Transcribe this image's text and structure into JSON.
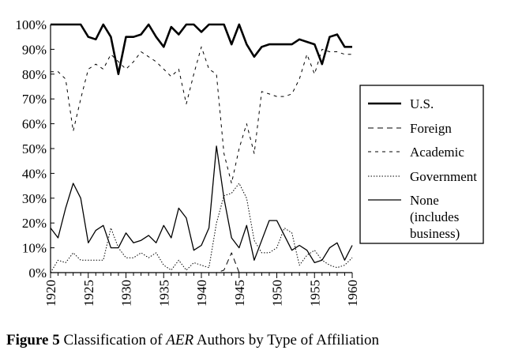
{
  "chart_data": {
    "type": "line",
    "title": "",
    "xlabel": "",
    "ylabel": "",
    "xlim": [
      1920,
      1960
    ],
    "ylim": [
      0,
      100
    ],
    "y_ticks": [
      0,
      10,
      20,
      30,
      40,
      50,
      60,
      70,
      80,
      90,
      100
    ],
    "y_tick_labels": [
      "0%",
      "10%",
      "20%",
      "30%",
      "40%",
      "50%",
      "60%",
      "70%",
      "80%",
      "90%",
      "100%"
    ],
    "x_ticks": [
      1920,
      1925,
      1930,
      1935,
      1940,
      1945,
      1950,
      1955,
      1960
    ],
    "x_tick_labels": [
      "1920",
      "1925",
      "1930",
      "1935",
      "1940",
      "1945",
      "1950",
      "1955",
      "1960"
    ],
    "grid": false,
    "legend_position": "right",
    "legend": [
      {
        "label": "U.S.",
        "style": "thick"
      },
      {
        "label": "Foreign",
        "style": "dashed"
      },
      {
        "label": "Academic",
        "style": "dashed"
      },
      {
        "label": "Government",
        "style": "dotted"
      },
      {
        "label": "None (includes business)",
        "style": "solid"
      }
    ],
    "series": [
      {
        "name": "U.S.",
        "x": [
          1920,
          1921,
          1922,
          1923,
          1924,
          1925,
          1926,
          1927,
          1928,
          1929,
          1930,
          1931,
          1932,
          1933,
          1934,
          1935,
          1936,
          1937,
          1938,
          1939,
          1940,
          1941,
          1942,
          1943,
          1944,
          1945,
          1946,
          1947,
          1948,
          1949,
          1950,
          1951,
          1952,
          1953,
          1954,
          1955,
          1956,
          1957,
          1958,
          1959,
          1960
        ],
        "y": [
          100,
          100,
          100,
          100,
          100,
          95,
          94,
          100,
          95,
          80,
          95,
          95,
          96,
          100,
          95,
          91,
          99,
          96,
          100,
          100,
          97,
          100,
          100,
          100,
          92,
          100,
          92,
          87,
          91,
          92,
          92,
          92,
          92,
          94,
          93,
          92,
          84,
          95,
          96,
          91,
          91
        ]
      },
      {
        "name": "Foreign",
        "x": [
          1920,
          1921,
          1922,
          1923,
          1924,
          1925,
          1926,
          1927,
          1928,
          1929,
          1930,
          1931,
          1932,
          1933,
          1934,
          1935,
          1936,
          1937,
          1938,
          1939,
          1940,
          1941,
          1942,
          1943,
          1944,
          1945,
          1946,
          1947,
          1948,
          1949,
          1950,
          1951,
          1952,
          1953,
          1954,
          1955,
          1956,
          1957,
          1958,
          1959,
          1960
        ],
        "y": [
          0,
          0,
          0,
          0,
          0,
          0,
          0,
          0,
          0,
          0,
          0,
          0,
          0,
          0,
          0,
          0,
          0,
          0,
          0,
          0,
          0,
          0,
          0,
          1,
          8,
          0,
          0,
          0,
          0,
          0,
          0,
          0,
          0,
          0,
          0,
          0,
          0,
          0,
          0,
          0,
          0
        ]
      },
      {
        "name": "Academic",
        "x": [
          1920,
          1921,
          1922,
          1923,
          1924,
          1925,
          1926,
          1927,
          1928,
          1929,
          1930,
          1931,
          1932,
          1933,
          1934,
          1935,
          1936,
          1937,
          1938,
          1939,
          1940,
          1941,
          1942,
          1943,
          1944,
          1945,
          1946,
          1947,
          1948,
          1949,
          1950,
          1951,
          1952,
          1953,
          1954,
          1955,
          1956,
          1957,
          1958,
          1959,
          1960
        ],
        "y": [
          81,
          81,
          78,
          57,
          70,
          82,
          84,
          82,
          88,
          85,
          82,
          85,
          89,
          87,
          85,
          82,
          79,
          82,
          68,
          80,
          91,
          82,
          80,
          48,
          36,
          50,
          60,
          48,
          73,
          72,
          71,
          71,
          72,
          78,
          88,
          80,
          90,
          89,
          89,
          88,
          88
        ]
      },
      {
        "name": "Government",
        "x": [
          1920,
          1921,
          1922,
          1923,
          1924,
          1925,
          1926,
          1927,
          1928,
          1929,
          1930,
          1931,
          1932,
          1933,
          1934,
          1935,
          1936,
          1937,
          1938,
          1939,
          1940,
          1941,
          1942,
          1943,
          1944,
          1945,
          1946,
          1947,
          1948,
          1949,
          1950,
          1951,
          1952,
          1953,
          1954,
          1955,
          1956,
          1957,
          1958,
          1959,
          1960
        ],
        "y": [
          0,
          5,
          4,
          8,
          5,
          5,
          5,
          5,
          18,
          10,
          6,
          6,
          8,
          6,
          8,
          3,
          1,
          5,
          1,
          4,
          3,
          2,
          20,
          31,
          32,
          36,
          30,
          13,
          8,
          8,
          10,
          18,
          16,
          3,
          7,
          9,
          5,
          3,
          2,
          3,
          6
        ]
      },
      {
        "name": "None (includes business)",
        "x": [
          1920,
          1921,
          1922,
          1923,
          1924,
          1925,
          1926,
          1927,
          1928,
          1929,
          1930,
          1931,
          1932,
          1933,
          1934,
          1935,
          1936,
          1937,
          1938,
          1939,
          1940,
          1941,
          1942,
          1943,
          1944,
          1945,
          1946,
          1947,
          1948,
          1949,
          1950,
          1951,
          1952,
          1953,
          1954,
          1955,
          1956,
          1957,
          1958,
          1959,
          1960
        ],
        "y": [
          18,
          14,
          26,
          36,
          30,
          12,
          17,
          19,
          10,
          10,
          16,
          12,
          13,
          15,
          12,
          19,
          14,
          26,
          22,
          9,
          11,
          18,
          51,
          30,
          14,
          10,
          19,
          5,
          13,
          21,
          21,
          15,
          9,
          11,
          9,
          4,
          5,
          10,
          12,
          5,
          11
        ]
      }
    ]
  },
  "caption": {
    "label": "Figure 5",
    "text_before": "Classification of ",
    "emph": "AER",
    "text_after": " Authors by Type of Affiliation"
  }
}
